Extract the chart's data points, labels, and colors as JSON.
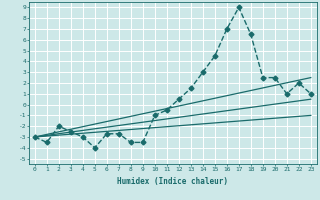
{
  "title": "",
  "xlabel": "Humidex (Indice chaleur)",
  "bg_color": "#cde8e8",
  "grid_color": "#ffffff",
  "line_color": "#1a6b6b",
  "xlim": [
    -0.5,
    23.5
  ],
  "ylim": [
    -5.5,
    9.5
  ],
  "xticks": [
    0,
    1,
    2,
    3,
    4,
    5,
    6,
    7,
    8,
    9,
    10,
    11,
    12,
    13,
    14,
    15,
    16,
    17,
    18,
    19,
    20,
    21,
    22,
    23
  ],
  "yticks": [
    -5,
    -4,
    -3,
    -2,
    -1,
    0,
    1,
    2,
    3,
    4,
    5,
    6,
    7,
    8,
    9
  ],
  "series": [
    {
      "x": [
        0,
        1,
        2,
        3,
        4,
        5,
        6,
        7,
        8,
        9,
        10,
        11,
        12,
        13,
        14,
        15,
        16,
        17,
        18,
        19,
        20,
        21,
        22,
        23
      ],
      "y": [
        -3,
        -3.5,
        -2,
        -2.5,
        -3,
        -4,
        -2.7,
        -2.7,
        -3.5,
        -3.5,
        -1,
        -0.5,
        0.5,
        1.5,
        3,
        4.5,
        7,
        9,
        6.5,
        2.5,
        2.5,
        1,
        2,
        1
      ],
      "marker": "D",
      "markersize": 2.5,
      "linestyle": "--",
      "linewidth": 1.0
    },
    {
      "x": [
        0,
        23
      ],
      "y": [
        -3,
        2.5
      ],
      "marker": null,
      "linestyle": "-",
      "linewidth": 0.9
    },
    {
      "x": [
        0,
        23
      ],
      "y": [
        -3,
        -1
      ],
      "marker": null,
      "linestyle": "-",
      "linewidth": 0.9
    },
    {
      "x": [
        0,
        23
      ],
      "y": [
        -3,
        0.5
      ],
      "marker": null,
      "linestyle": "-",
      "linewidth": 0.9
    }
  ]
}
